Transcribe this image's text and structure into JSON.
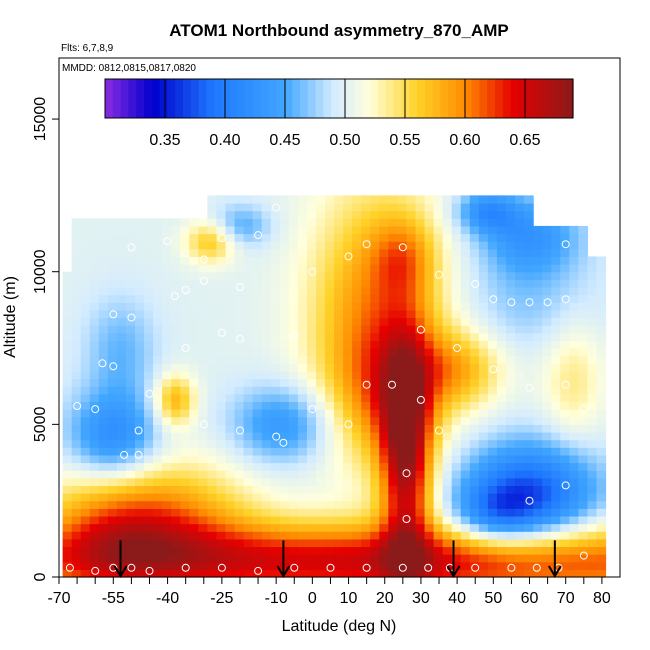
{
  "chart_data": {
    "type": "heatmap",
    "title": "ATOM1 Northbound asymmetry_870_AMP",
    "subtitle_flights": "Flts: 6,7,8,9",
    "subtitle_dates": "MMDD: 0812,0815,0817,0820",
    "xlabel": "Latitude (deg N)",
    "ylabel": "Altitude (m)",
    "xlim": [
      -70,
      85
    ],
    "ylim": [
      0,
      17000
    ],
    "x_ticks": [
      -70,
      -55,
      -40,
      -25,
      -10,
      0,
      10,
      20,
      30,
      40,
      50,
      60,
      70,
      80
    ],
    "x_tick_labels": [
      "-70",
      "-55",
      "-40",
      "-25",
      "-10",
      "0",
      "10",
      "20",
      "30",
      "40",
      "50",
      "60",
      "70",
      "80"
    ],
    "x_minor_ticks": [
      -65,
      -60,
      -50,
      -45,
      -35,
      -30,
      -20,
      -15,
      -5,
      5,
      15,
      25,
      35,
      45,
      55,
      65,
      75
    ],
    "y_ticks": [
      0,
      5000,
      10000,
      15000
    ],
    "y_tick_labels": [
      "0",
      "5000",
      "10000",
      "15000"
    ],
    "colorbar": {
      "range": [
        0.3,
        0.69
      ],
      "ticks": [
        0.35,
        0.4,
        0.45,
        0.5,
        0.55,
        0.6,
        0.65
      ],
      "tick_labels": [
        "0.35",
        "0.40",
        "0.45",
        "0.50",
        "0.55",
        "0.60",
        "0.65"
      ],
      "stops": [
        {
          "v": 0.3,
          "c": "#8a2be2"
        },
        {
          "v": 0.34,
          "c": "#0000cd"
        },
        {
          "v": 0.39,
          "c": "#1e78ff"
        },
        {
          "v": 0.45,
          "c": "#41a6ff"
        },
        {
          "v": 0.49,
          "c": "#d2ebff"
        },
        {
          "v": 0.52,
          "c": "#ffffdc"
        },
        {
          "v": 0.56,
          "c": "#ffd228"
        },
        {
          "v": 0.6,
          "c": "#ff8c00"
        },
        {
          "v": 0.64,
          "c": "#e60000"
        },
        {
          "v": 0.69,
          "c": "#8b1a1a"
        }
      ]
    },
    "field": {
      "lat_range": [
        -69,
        81
      ],
      "alt_range": [
        0,
        12500
      ],
      "features": [
        {
          "lat": 20,
          "alt": 500,
          "slat": 90,
          "salt": 900,
          "amp": 0.15
        },
        {
          "lat": -55,
          "alt": 1800,
          "slat": 14,
          "salt": 1400,
          "amp": 0.09
        },
        {
          "lat": -35,
          "alt": 2000,
          "slat": 15,
          "salt": 1300,
          "amp": 0.06
        },
        {
          "lat": 26,
          "alt": 4000,
          "slat": 5,
          "salt": 2600,
          "amp": 0.16
        },
        {
          "lat": 18,
          "alt": 8500,
          "slat": 13,
          "salt": 3000,
          "amp": 0.1
        },
        {
          "lat": 25,
          "alt": 10500,
          "slat": 6,
          "salt": 900,
          "amp": 0.05
        },
        {
          "lat": 20,
          "alt": 6000,
          "slat": 10,
          "salt": 1500,
          "amp": 0.05
        },
        {
          "lat": 40,
          "alt": 6800,
          "slat": 9,
          "salt": 900,
          "amp": 0.07
        },
        {
          "lat": -8,
          "alt": 5000,
          "slat": 10,
          "salt": 900,
          "amp": -0.07
        },
        {
          "lat": -55,
          "alt": 4500,
          "slat": 9,
          "salt": 1100,
          "amp": -0.09
        },
        {
          "lat": 60,
          "alt": 2700,
          "slat": 13,
          "salt": 1200,
          "amp": -0.13
        },
        {
          "lat": 50,
          "alt": 2000,
          "slat": 8,
          "salt": 700,
          "amp": -0.06
        },
        {
          "lat": 60,
          "alt": 11200,
          "slat": 10,
          "salt": 900,
          "amp": -0.07
        },
        {
          "lat": 48,
          "alt": 12000,
          "slat": 6,
          "salt": 500,
          "amp": -0.07
        },
        {
          "lat": -20,
          "alt": 11500,
          "slat": 6,
          "salt": 500,
          "amp": -0.05
        },
        {
          "lat": -28,
          "alt": 11000,
          "slat": 5,
          "salt": 500,
          "amp": 0.07
        },
        {
          "lat": -38,
          "alt": 5800,
          "slat": 4,
          "salt": 600,
          "amp": 0.08
        },
        {
          "lat": -53,
          "alt": 7500,
          "slat": 7,
          "salt": 1200,
          "amp": -0.04
        },
        {
          "lat": 60,
          "alt": 9000,
          "slat": 14,
          "salt": 1200,
          "amp": -0.03
        },
        {
          "lat": 72,
          "alt": 6500,
          "slat": 6,
          "salt": 1500,
          "amp": 0.04
        }
      ],
      "cutouts": [
        {
          "lat_min": -69,
          "lat_max": -28,
          "alt_min": 11700,
          "alt_max": 12500
        },
        {
          "lat_min": 60,
          "lat_max": 81,
          "alt_min": 11500,
          "alt_max": 12500
        },
        {
          "lat_min": 75,
          "lat_max": 81,
          "alt_min": 10500,
          "alt_max": 12500
        },
        {
          "lat_min": -69,
          "lat_max": -67,
          "alt_min": 10000,
          "alt_max": 12500
        }
      ]
    },
    "markers_circles": [
      [
        -67,
        300
      ],
      [
        -60,
        200
      ],
      [
        -55,
        300
      ],
      [
        -50,
        300
      ],
      [
        -45,
        200
      ],
      [
        -35,
        300
      ],
      [
        -25,
        300
      ],
      [
        -15,
        200
      ],
      [
        -5,
        300
      ],
      [
        5,
        300
      ],
      [
        15,
        300
      ],
      [
        25,
        300
      ],
      [
        32,
        300
      ],
      [
        38,
        300
      ],
      [
        45,
        300
      ],
      [
        55,
        300
      ],
      [
        62,
        300
      ],
      [
        68,
        300
      ],
      [
        75,
        700
      ],
      [
        -65,
        5600
      ],
      [
        -60,
        5500
      ],
      [
        -48,
        4800
      ],
      [
        -45,
        6000
      ],
      [
        -30,
        5000
      ],
      [
        -20,
        4800
      ],
      [
        -10,
        4600
      ],
      [
        0,
        5500
      ],
      [
        10,
        5000
      ],
      [
        15,
        6300
      ],
      [
        22,
        6300
      ],
      [
        30,
        5800
      ],
      [
        35,
        4800
      ],
      [
        -52,
        4000
      ],
      [
        -48,
        4000
      ],
      [
        -8,
        4400
      ],
      [
        26,
        3400
      ],
      [
        26,
        1900
      ],
      [
        60,
        2500
      ],
      [
        70,
        3000
      ],
      [
        -58,
        7000
      ],
      [
        -55,
        6900
      ],
      [
        -35,
        7500
      ],
      [
        -25,
        8000
      ],
      [
        -20,
        7800
      ],
      [
        -5,
        7900
      ],
      [
        30,
        8100
      ],
      [
        40,
        7500
      ],
      [
        50,
        6800
      ],
      [
        60,
        6200
      ],
      [
        70,
        6300
      ],
      [
        75,
        5500
      ],
      [
        -55,
        8600
      ],
      [
        -50,
        8500
      ],
      [
        -38,
        9200
      ],
      [
        -35,
        9400
      ],
      [
        -30,
        9700
      ],
      [
        -20,
        9500
      ],
      [
        0,
        10000
      ],
      [
        15,
        10900
      ],
      [
        25,
        10800
      ],
      [
        35,
        9900
      ],
      [
        45,
        9600
      ],
      [
        50,
        9100
      ],
      [
        55,
        9000
      ],
      [
        60,
        9000
      ],
      [
        65,
        9000
      ],
      [
        70,
        9100
      ],
      [
        -50,
        10800
      ],
      [
        -40,
        11000
      ],
      [
        -30,
        10400
      ],
      [
        -25,
        11100
      ],
      [
        -15,
        11200
      ],
      [
        -10,
        12100
      ],
      [
        10,
        10500
      ],
      [
        70,
        10900
      ],
      [
        78,
        11900
      ]
    ],
    "markers_arrows": [
      -53,
      -8,
      39,
      67
    ]
  }
}
